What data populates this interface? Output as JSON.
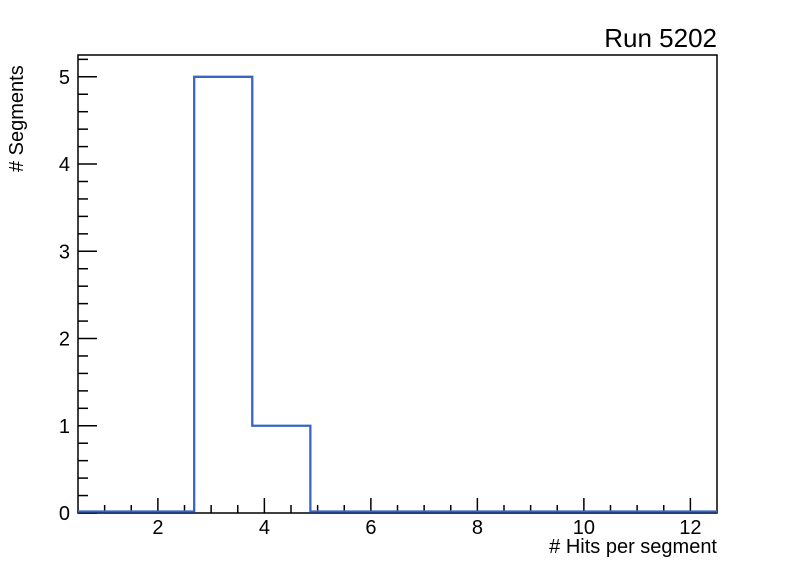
{
  "page": {
    "background": "#ffffff"
  },
  "chart_data": {
    "type": "histogram-step",
    "title": "Run 5202",
    "xlabel": "# Hits per segment",
    "ylabel": "# Segments",
    "xlim": [
      0.5,
      12.5
    ],
    "ylim": [
      0,
      5.25
    ],
    "x_major_ticks": [
      2,
      4,
      6,
      8,
      10,
      12
    ],
    "x_minor_tick_step": 0.5,
    "y_major_ticks": [
      0,
      1,
      2,
      3,
      4,
      5
    ],
    "y_minor_tick_step": 0.2,
    "bin_edges": [
      0.5,
      1.590909,
      2.681818,
      3.772727,
      4.863636,
      5.954545,
      7.045455,
      8.136364,
      9.227273,
      10.318182,
      11.409091,
      12.5
    ],
    "bin_counts": [
      0,
      0,
      5,
      1,
      0,
      0,
      0,
      0,
      0,
      0,
      0
    ],
    "grid": false,
    "legend": null,
    "colors": {
      "hist_line": "#3865c6",
      "axis": "#000000",
      "text": "#000000",
      "background": "#ffffff"
    }
  }
}
